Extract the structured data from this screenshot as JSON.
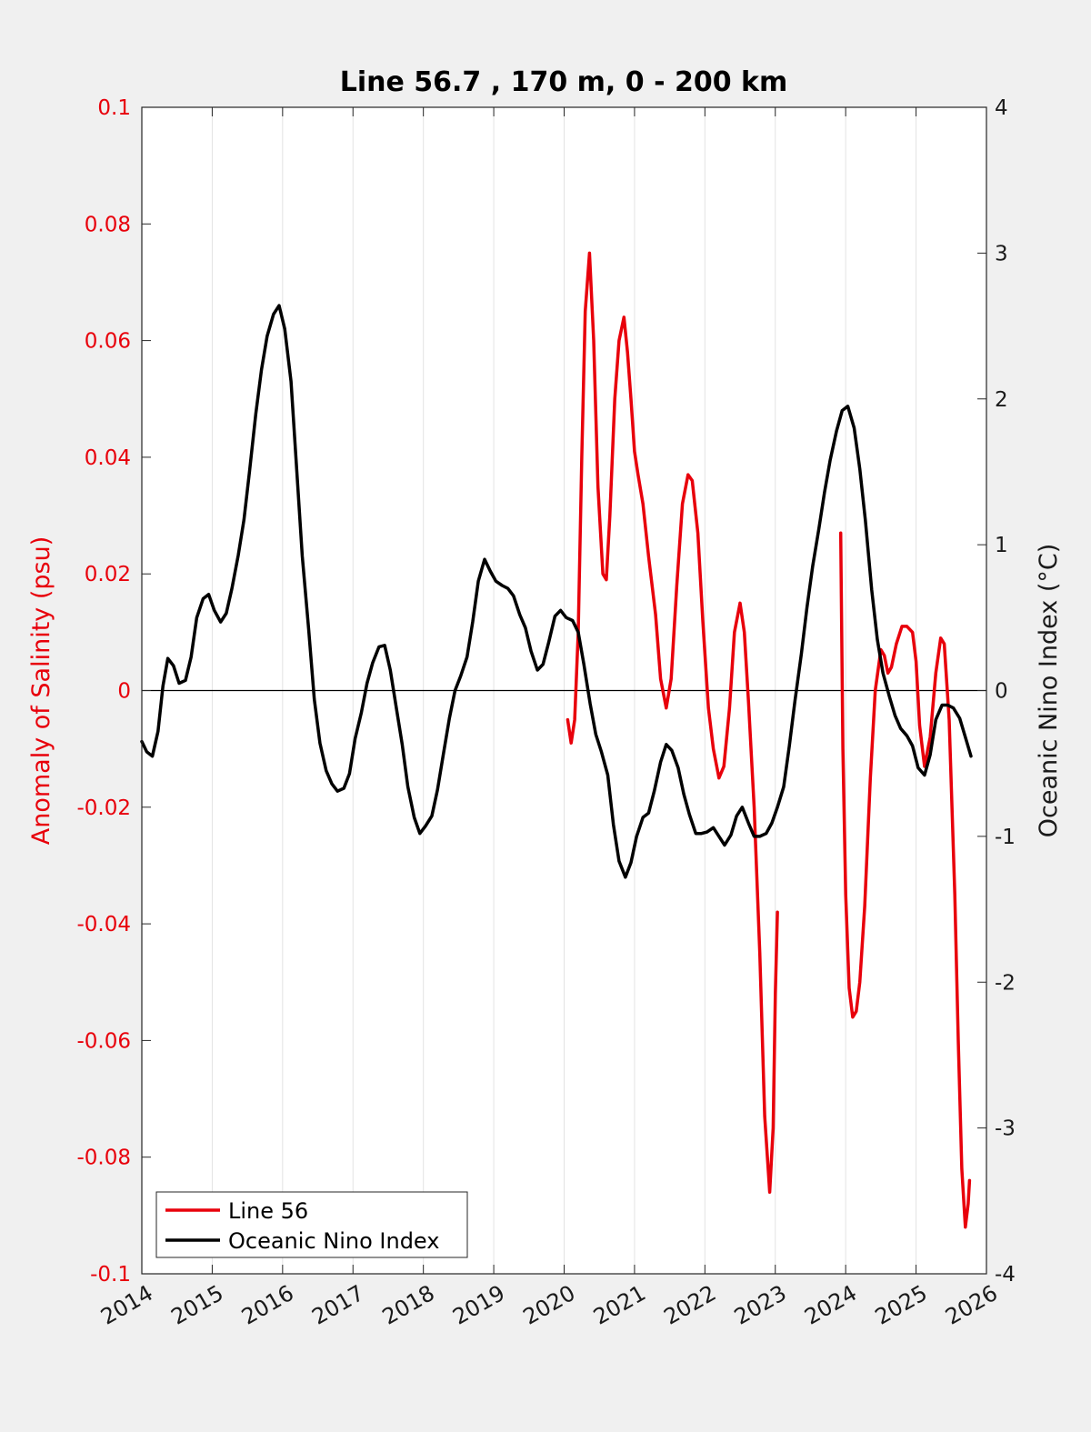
{
  "chart_data": {
    "type": "line",
    "title": "Line 56.7 , 170 m, 0 - 200 km",
    "xlim": [
      2014,
      2026
    ],
    "xticks": [
      "2014",
      "2015",
      "2016",
      "2017",
      "2018",
      "2019",
      "2020",
      "2021",
      "2022",
      "2023",
      "2024",
      "2025",
      "2026"
    ],
    "ylabel_left": "Anomaly of Salinity (psu)",
    "ylim_left": [
      -0.1,
      0.1
    ],
    "yticks_left": [
      "0.1",
      "0.08",
      "0.06",
      "0.04",
      "0.02",
      "0",
      "-0.02",
      "-0.04",
      "-0.06",
      "-0.08",
      "-0.1"
    ],
    "ylabel_right": "Oceanic Nino Index (°C)",
    "ylim_right": [
      -4,
      4
    ],
    "yticks_right": [
      "4",
      "3",
      "2",
      "1",
      "0",
      "-1",
      "-2",
      "-3",
      "-4"
    ],
    "grid": "vertical",
    "legend_position": "bottom-left",
    "colors": {
      "line56": "#e8000b",
      "oni": "#000000"
    },
    "series": [
      {
        "name": "Line 56",
        "axis": "left",
        "color": "#e8000b",
        "segments": [
          [
            [
              2020.05,
              -0.005
            ],
            [
              2020.1,
              -0.009
            ],
            [
              2020.15,
              -0.005
            ],
            [
              2020.2,
              0.01
            ],
            [
              2020.25,
              0.04
            ],
            [
              2020.3,
              0.065
            ],
            [
              2020.36,
              0.075
            ],
            [
              2020.42,
              0.06
            ],
            [
              2020.48,
              0.035
            ],
            [
              2020.55,
              0.02
            ],
            [
              2020.6,
              0.019
            ],
            [
              2020.65,
              0.03
            ],
            [
              2020.72,
              0.05
            ],
            [
              2020.78,
              0.06
            ],
            [
              2020.85,
              0.064
            ],
            [
              2020.9,
              0.058
            ],
            [
              2020.95,
              0.05
            ],
            [
              2021.0,
              0.041
            ],
            [
              2021.05,
              0.037
            ],
            [
              2021.12,
              0.032
            ],
            [
              2021.2,
              0.023
            ],
            [
              2021.3,
              0.013
            ],
            [
              2021.37,
              0.002
            ],
            [
              2021.45,
              -0.003
            ],
            [
              2021.52,
              0.002
            ],
            [
              2021.6,
              0.018
            ],
            [
              2021.68,
              0.032
            ],
            [
              2021.76,
              0.037
            ],
            [
              2021.82,
              0.036
            ],
            [
              2021.9,
              0.027
            ],
            [
              2021.97,
              0.012
            ],
            [
              2022.05,
              -0.003
            ],
            [
              2022.12,
              -0.01
            ],
            [
              2022.2,
              -0.015
            ],
            [
              2022.27,
              -0.013
            ],
            [
              2022.35,
              -0.003
            ],
            [
              2022.42,
              0.01
            ],
            [
              2022.5,
              0.015
            ],
            [
              2022.56,
              0.01
            ],
            [
              2022.62,
              -0.002
            ],
            [
              2022.7,
              -0.02
            ],
            [
              2022.78,
              -0.045
            ],
            [
              2022.85,
              -0.073
            ],
            [
              2022.92,
              -0.086
            ],
            [
              2022.97,
              -0.075
            ],
            [
              2023.0,
              -0.052
            ],
            [
              2023.03,
              -0.038
            ]
          ],
          [
            [
              2023.93,
              0.027
            ],
            [
              2023.96,
              -0.01
            ],
            [
              2024.0,
              -0.035
            ],
            [
              2024.05,
              -0.051
            ],
            [
              2024.1,
              -0.056
            ],
            [
              2024.15,
              -0.055
            ],
            [
              2024.2,
              -0.05
            ],
            [
              2024.27,
              -0.037
            ],
            [
              2024.35,
              -0.015
            ],
            [
              2024.42,
              0.0
            ],
            [
              2024.5,
              0.007
            ],
            [
              2024.55,
              0.006
            ],
            [
              2024.6,
              0.003
            ],
            [
              2024.65,
              0.004
            ],
            [
              2024.72,
              0.008
            ],
            [
              2024.8,
              0.011
            ],
            [
              2024.87,
              0.011
            ],
            [
              2024.95,
              0.01
            ],
            [
              2025.0,
              0.005
            ],
            [
              2025.05,
              -0.006
            ],
            [
              2025.12,
              -0.013
            ],
            [
              2025.2,
              -0.008
            ],
            [
              2025.28,
              0.003
            ],
            [
              2025.35,
              0.009
            ],
            [
              2025.4,
              0.008
            ],
            [
              2025.47,
              -0.005
            ],
            [
              2025.55,
              -0.035
            ],
            [
              2025.6,
              -0.06
            ],
            [
              2025.65,
              -0.082
            ],
            [
              2025.7,
              -0.092
            ],
            [
              2025.74,
              -0.088
            ],
            [
              2025.76,
              -0.084
            ]
          ]
        ]
      },
      {
        "name": "Oceanic Nino Index",
        "axis": "right",
        "color": "#000000",
        "segments": [
          [
            [
              2014.0,
              -0.35
            ],
            [
              2014.07,
              -0.42
            ],
            [
              2014.15,
              -0.45
            ],
            [
              2014.23,
              -0.28
            ],
            [
              2014.3,
              0.03
            ],
            [
              2014.37,
              0.22
            ],
            [
              2014.45,
              0.17
            ],
            [
              2014.53,
              0.05
            ],
            [
              2014.62,
              0.07
            ],
            [
              2014.7,
              0.23
            ],
            [
              2014.78,
              0.5
            ],
            [
              2014.87,
              0.63
            ],
            [
              2014.95,
              0.66
            ],
            [
              2015.03,
              0.55
            ],
            [
              2015.12,
              0.47
            ],
            [
              2015.2,
              0.53
            ],
            [
              2015.28,
              0.7
            ],
            [
              2015.37,
              0.93
            ],
            [
              2015.45,
              1.17
            ],
            [
              2015.53,
              1.5
            ],
            [
              2015.62,
              1.9
            ],
            [
              2015.7,
              2.2
            ],
            [
              2015.78,
              2.43
            ],
            [
              2015.87,
              2.58
            ],
            [
              2015.95,
              2.64
            ],
            [
              2016.03,
              2.48
            ],
            [
              2016.12,
              2.12
            ],
            [
              2016.2,
              1.52
            ],
            [
              2016.28,
              0.92
            ],
            [
              2016.37,
              0.42
            ],
            [
              2016.45,
              -0.06
            ],
            [
              2016.53,
              -0.36
            ],
            [
              2016.62,
              -0.55
            ],
            [
              2016.7,
              -0.64
            ],
            [
              2016.78,
              -0.69
            ],
            [
              2016.87,
              -0.67
            ],
            [
              2016.95,
              -0.57
            ],
            [
              2017.03,
              -0.33
            ],
            [
              2017.12,
              -0.15
            ],
            [
              2017.2,
              0.05
            ],
            [
              2017.28,
              0.19
            ],
            [
              2017.37,
              0.3
            ],
            [
              2017.45,
              0.31
            ],
            [
              2017.53,
              0.14
            ],
            [
              2017.62,
              -0.13
            ],
            [
              2017.7,
              -0.37
            ],
            [
              2017.78,
              -0.66
            ],
            [
              2017.87,
              -0.87
            ],
            [
              2017.95,
              -0.98
            ],
            [
              2018.03,
              -0.93
            ],
            [
              2018.12,
              -0.86
            ],
            [
              2018.2,
              -0.68
            ],
            [
              2018.28,
              -0.45
            ],
            [
              2018.37,
              -0.19
            ],
            [
              2018.45,
              0.0
            ],
            [
              2018.53,
              0.1
            ],
            [
              2018.62,
              0.23
            ],
            [
              2018.7,
              0.47
            ],
            [
              2018.78,
              0.75
            ],
            [
              2018.87,
              0.9
            ],
            [
              2018.95,
              0.82
            ],
            [
              2019.03,
              0.75
            ],
            [
              2019.12,
              0.72
            ],
            [
              2019.2,
              0.7
            ],
            [
              2019.28,
              0.65
            ],
            [
              2019.37,
              0.52
            ],
            [
              2019.45,
              0.43
            ],
            [
              2019.53,
              0.27
            ],
            [
              2019.62,
              0.14
            ],
            [
              2019.7,
              0.18
            ],
            [
              2019.78,
              0.33
            ],
            [
              2019.87,
              0.51
            ],
            [
              2019.95,
              0.55
            ],
            [
              2020.03,
              0.5
            ],
            [
              2020.12,
              0.48
            ],
            [
              2020.2,
              0.4
            ],
            [
              2020.28,
              0.18
            ],
            [
              2020.37,
              -0.09
            ],
            [
              2020.45,
              -0.3
            ],
            [
              2020.53,
              -0.42
            ],
            [
              2020.62,
              -0.58
            ],
            [
              2020.7,
              -0.92
            ],
            [
              2020.78,
              -1.17
            ],
            [
              2020.87,
              -1.28
            ],
            [
              2020.95,
              -1.18
            ],
            [
              2021.03,
              -1.0
            ],
            [
              2021.12,
              -0.87
            ],
            [
              2021.2,
              -0.84
            ],
            [
              2021.28,
              -0.69
            ],
            [
              2021.37,
              -0.49
            ],
            [
              2021.45,
              -0.37
            ],
            [
              2021.53,
              -0.41
            ],
            [
              2021.62,
              -0.53
            ],
            [
              2021.7,
              -0.71
            ],
            [
              2021.78,
              -0.85
            ],
            [
              2021.87,
              -0.98
            ],
            [
              2021.95,
              -0.98
            ],
            [
              2022.03,
              -0.97
            ],
            [
              2022.12,
              -0.94
            ],
            [
              2022.2,
              -1.0
            ],
            [
              2022.28,
              -1.06
            ],
            [
              2022.37,
              -0.99
            ],
            [
              2022.45,
              -0.86
            ],
            [
              2022.53,
              -0.8
            ],
            [
              2022.62,
              -0.91
            ],
            [
              2022.7,
              -1.0
            ],
            [
              2022.78,
              -1.0
            ],
            [
              2022.87,
              -0.98
            ],
            [
              2022.95,
              -0.91
            ],
            [
              2023.03,
              -0.8
            ],
            [
              2023.12,
              -0.66
            ],
            [
              2023.2,
              -0.38
            ],
            [
              2023.28,
              -0.07
            ],
            [
              2023.37,
              0.25
            ],
            [
              2023.45,
              0.57
            ],
            [
              2023.53,
              0.85
            ],
            [
              2023.62,
              1.11
            ],
            [
              2023.7,
              1.36
            ],
            [
              2023.78,
              1.58
            ],
            [
              2023.87,
              1.78
            ],
            [
              2023.95,
              1.92
            ],
            [
              2024.03,
              1.95
            ],
            [
              2024.12,
              1.8
            ],
            [
              2024.2,
              1.52
            ],
            [
              2024.28,
              1.17
            ],
            [
              2024.37,
              0.69
            ],
            [
              2024.45,
              0.35
            ],
            [
              2024.53,
              0.12
            ],
            [
              2024.62,
              -0.04
            ],
            [
              2024.7,
              -0.17
            ],
            [
              2024.78,
              -0.26
            ],
            [
              2024.87,
              -0.31
            ],
            [
              2024.95,
              -0.38
            ],
            [
              2025.03,
              -0.53
            ],
            [
              2025.12,
              -0.58
            ],
            [
              2025.2,
              -0.44
            ],
            [
              2025.28,
              -0.2
            ],
            [
              2025.37,
              -0.1
            ],
            [
              2025.45,
              -0.1
            ],
            [
              2025.53,
              -0.12
            ],
            [
              2025.62,
              -0.19
            ],
            [
              2025.7,
              -0.32
            ],
            [
              2025.78,
              -0.45
            ]
          ]
        ]
      }
    ]
  }
}
